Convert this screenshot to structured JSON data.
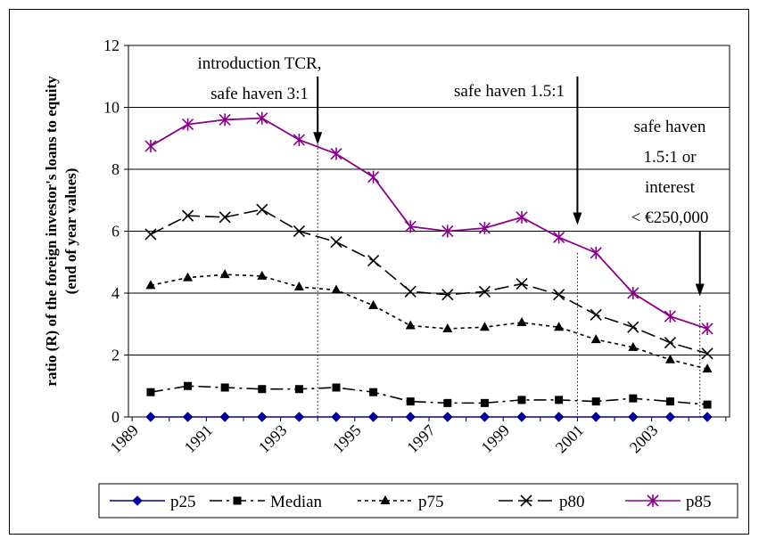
{
  "chart_data": {
    "type": "line",
    "title": "",
    "ylabel_lines": [
      "ratio (R) of the foreign investor's loans to equity",
      "(end of year values)"
    ],
    "xlabel": "",
    "ylim": [
      0,
      12
    ],
    "yticks": [
      0,
      2,
      4,
      6,
      8,
      10,
      12
    ],
    "xlim": [
      1988.9,
      2005.1
    ],
    "xtick_values": [
      1989,
      1991,
      1993,
      1995,
      1997,
      1999,
      2001,
      2003
    ],
    "xtick_labels": [
      "1989",
      "1991",
      "1993",
      "1995",
      "1997",
      "1999",
      "2001",
      "2003"
    ],
    "grid": "horizontal",
    "legend_position": "bottom",
    "x": [
      1989.5,
      1990.5,
      1991.5,
      1992.5,
      1993.5,
      1994.5,
      1995.5,
      1996.5,
      1997.5,
      1998.5,
      1999.5,
      2000.5,
      2001.5,
      2002.5,
      2003.5,
      2004.5
    ],
    "series": [
      {
        "name": "p25",
        "color": "#000099",
        "marker": "diamond",
        "dash": "",
        "values": [
          0,
          0,
          0,
          0,
          0,
          0,
          0,
          0,
          0,
          0,
          0,
          0,
          0,
          0,
          0,
          0
        ]
      },
      {
        "name": "Median",
        "color": "#000000",
        "marker": "square",
        "dash": "14,5,3,5",
        "values": [
          0.8,
          1.0,
          0.95,
          0.9,
          0.9,
          0.95,
          0.8,
          0.5,
          0.45,
          0.45,
          0.55,
          0.55,
          0.5,
          0.6,
          0.5,
          0.4
        ]
      },
      {
        "name": "p75",
        "color": "#000000",
        "marker": "triangle",
        "dash": "4,4",
        "values": [
          4.25,
          4.5,
          4.6,
          4.55,
          4.2,
          4.1,
          3.6,
          2.95,
          2.85,
          2.9,
          3.05,
          2.9,
          2.5,
          2.25,
          1.85,
          1.55
        ]
      },
      {
        "name": "p80",
        "color": "#000000",
        "marker": "x",
        "dash": "16,6",
        "values": [
          5.9,
          6.5,
          6.45,
          6.7,
          6.0,
          5.65,
          5.05,
          4.05,
          3.95,
          4.05,
          4.3,
          3.95,
          3.3,
          2.9,
          2.4,
          2.05
        ]
      },
      {
        "name": "p85",
        "color": "#8B008B",
        "marker": "star",
        "dash": "",
        "values": [
          8.75,
          9.45,
          9.6,
          9.65,
          8.95,
          8.5,
          7.75,
          6.15,
          6.0,
          6.1,
          6.45,
          5.8,
          5.3,
          4.0,
          3.25,
          2.85
        ]
      }
    ],
    "annotations": [
      {
        "id": "tcr",
        "lines": [
          "introduction TCR,",
          "safe haven 3:1"
        ],
        "x_vline": 1994,
        "arrow_from_y": 11.0,
        "arrow_to_y": 8.8
      },
      {
        "id": "sh15",
        "lines": [
          "safe haven 1.5:1"
        ],
        "x_vline": 2001,
        "arrow_from_y": 11.0,
        "arrow_to_y": 6.2
      },
      {
        "id": "sh15i",
        "lines": [
          "safe haven",
          "1.5:1 or",
          "interest",
          "< €250,000"
        ],
        "x_vline": 2004.3,
        "arrow_from_y": 6.0,
        "arrow_to_y": 3.9
      }
    ]
  }
}
